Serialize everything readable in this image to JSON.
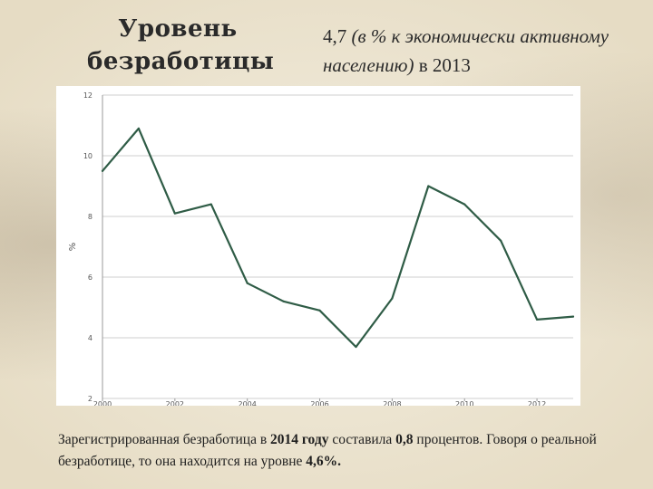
{
  "title": {
    "line1": "Уровень",
    "line2": "безработицы"
  },
  "subtitle": {
    "value": "4,7",
    "unit_text": "(в % к экономически активному населению)",
    "suffix": "в 2013"
  },
  "caption": {
    "part1": "Зарегистрированная безработица в ",
    "year": "2014 году",
    "part2": " составила ",
    "registered_value": "0,8",
    "part3": " процентов. Говоря о реальной безработице, то она находится на уровне ",
    "real_value": "4,6%."
  },
  "colors": {
    "line": "#2f5c46",
    "grid": "#cfcfcf",
    "axis_text": "#555555"
  },
  "chart_data": {
    "type": "line",
    "x": [
      2000,
      2001,
      2002,
      2003,
      2004,
      2005,
      2006,
      2007,
      2008,
      2009,
      2010,
      2011,
      2012,
      2013
    ],
    "series": [
      {
        "values": [
          9.5,
          10.9,
          8.1,
          8.4,
          5.8,
          5.2,
          4.9,
          3.7,
          5.3,
          9.0,
          8.4,
          7.2,
          4.6,
          4.7
        ]
      }
    ],
    "xticks": [
      "2000",
      "2002",
      "2004",
      "2006",
      "2008",
      "2010",
      "2012"
    ],
    "yticks": [
      "2",
      "4",
      "6",
      "8",
      "10",
      "12"
    ],
    "ylabel": "%",
    "xlim": [
      2000,
      2013
    ],
    "ylim": [
      2,
      12
    ],
    "grid": true
  }
}
